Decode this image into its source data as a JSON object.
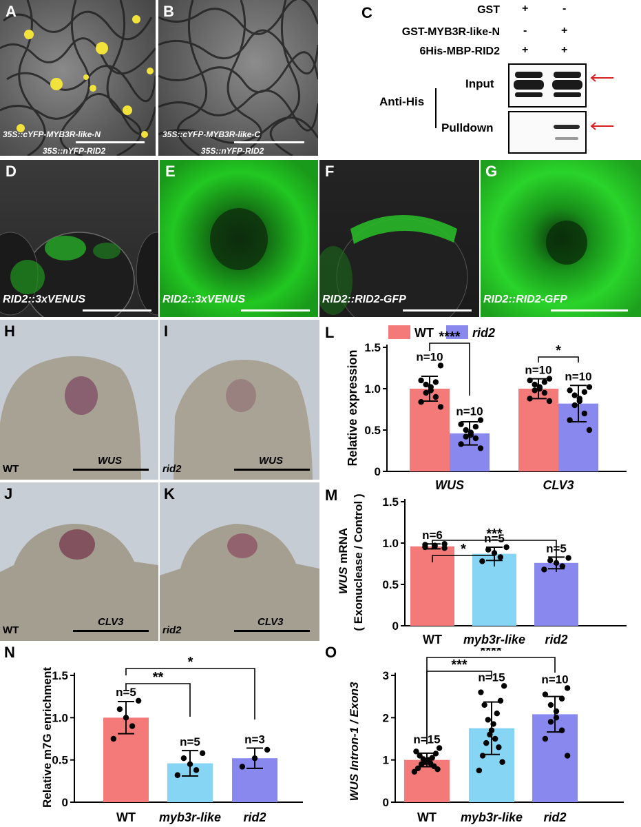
{
  "panels": {
    "A": {
      "label": "A",
      "caption1": "35S::cYFP-MYB3R-like-N",
      "caption2": "35S::nYFP-RID2"
    },
    "B": {
      "label": "B",
      "caption1": "35S::cYFP-MYB3R-like-C",
      "caption2": "35S::nYFP-RID2"
    },
    "C": {
      "label": "C",
      "rows": [
        {
          "name": "GST",
          "lane1": "+",
          "lane2": "-"
        },
        {
          "name": "GST-MYB3R-like-N",
          "lane1": "-",
          "lane2": "+"
        },
        {
          "name": "6His-MBP-RID2",
          "lane1": "+",
          "lane2": "+"
        }
      ],
      "antibody": "Anti-His",
      "input_label": "Input",
      "pulldown_label": "Pulldown"
    },
    "D": {
      "label": "D",
      "caption": "RID2::3xVENUS"
    },
    "E": {
      "label": "E",
      "caption": "RID2::3xVENUS"
    },
    "F": {
      "label": "F",
      "caption": "RID2::RID2-GFP"
    },
    "G": {
      "label": "G",
      "caption": "RID2::RID2-GFP"
    },
    "H": {
      "label": "H",
      "genotype": "WT",
      "gene": "WUS"
    },
    "I": {
      "label": "I",
      "genotype": "rid2",
      "gene": "WUS"
    },
    "J": {
      "label": "J",
      "genotype": "WT",
      "gene": "CLV3"
    },
    "K": {
      "label": "K",
      "genotype": "rid2",
      "gene": "CLV3"
    },
    "L": {
      "label": "L"
    },
    "M": {
      "label": "M"
    },
    "N": {
      "label": "N"
    },
    "O": {
      "label": "O"
    }
  },
  "colors": {
    "wt": "#f47a7a",
    "myb3r": "#86d5f5",
    "rid2": "#8888ee",
    "arrow": "#d62020"
  },
  "chart_data": [
    {
      "panel": "L",
      "type": "bar",
      "legend": [
        "WT",
        "rid2"
      ],
      "legend_placement": "top",
      "categories": [
        "WUS",
        "CLV3"
      ],
      "series": [
        {
          "name": "WT",
          "values": [
            1.0,
            1.0
          ],
          "errors": [
            0.15,
            0.12
          ],
          "n": [
            "n=10",
            "n=10"
          ],
          "points": [
            [
              1.28,
              1.1,
              1.08,
              1.05,
              1.02,
              0.98,
              0.95,
              0.9,
              0.84,
              0.78
            ],
            [
              1.12,
              1.1,
              1.08,
              1.05,
              1.02,
              1.0,
              0.98,
              0.95,
              0.88,
              0.85
            ]
          ]
        },
        {
          "name": "rid2",
          "values": [
            0.46,
            0.82
          ],
          "errors": [
            0.14,
            0.22
          ],
          "n": [
            "n=10",
            "n=10"
          ],
          "points": [
            [
              0.62,
              0.57,
              0.54,
              0.5,
              0.47,
              0.44,
              0.42,
              0.4,
              0.33,
              0.28
            ],
            [
              1.02,
              0.98,
              0.96,
              0.92,
              0.88,
              0.85,
              0.8,
              0.7,
              0.62,
              0.5
            ]
          ]
        }
      ],
      "ylabel": "Relative expression",
      "ylim": [
        0,
        1.5
      ],
      "yticks": [
        "0",
        "0.5",
        "1.0",
        "1.5"
      ],
      "significance": [
        {
          "group": "WUS",
          "label": "****"
        },
        {
          "group": "CLV3",
          "label": "*"
        }
      ]
    },
    {
      "panel": "M",
      "type": "bar",
      "categories": [
        "WT",
        "myb3r-like",
        "rid2"
      ],
      "values": [
        0.96,
        0.87,
        0.76
      ],
      "errors": [
        0.03,
        0.08,
        0.07
      ],
      "n": [
        "n=6",
        "n=5",
        "n=5"
      ],
      "points": [
        [
          0.99,
          0.98,
          0.97,
          0.96,
          0.95,
          0.94
        ],
        [
          0.95,
          0.92,
          0.88,
          0.83,
          0.78
        ],
        [
          0.82,
          0.79,
          0.76,
          0.72,
          0.68
        ]
      ],
      "ylabel_gene": "WUS",
      "ylabel_rest": " mRNA",
      "ylabel2": "( Exonuclease / Control )",
      "ylim": [
        0,
        1.5
      ],
      "yticks": [
        "0",
        "0.5",
        "1.0",
        "1.5"
      ],
      "significance": [
        {
          "from": "WT",
          "to": "myb3r-like",
          "label": "*"
        },
        {
          "from": "WT",
          "to": "rid2",
          "label": "***"
        }
      ]
    },
    {
      "panel": "N",
      "type": "bar",
      "categories": [
        "WT",
        "myb3r-like",
        "rid2"
      ],
      "values": [
        1.0,
        0.46,
        0.52
      ],
      "errors": [
        0.19,
        0.15,
        0.12
      ],
      "n": [
        "n=5",
        "n=5",
        "n=3"
      ],
      "points": [
        [
          1.2,
          1.1,
          1.0,
          0.9,
          0.75
        ],
        [
          0.58,
          0.52,
          0.45,
          0.38,
          0.32
        ],
        [
          0.62,
          0.52,
          0.42
        ]
      ],
      "ylabel": "Relative m7G enrichment",
      "ylim": [
        0,
        1.5
      ],
      "yticks": [
        "0",
        "0.5",
        "1.0",
        "1.5"
      ],
      "significance": [
        {
          "from": "WT",
          "to": "myb3r-like",
          "label": "**"
        },
        {
          "from": "WT",
          "to": "rid2",
          "label": "*"
        }
      ]
    },
    {
      "panel": "O",
      "type": "bar",
      "categories": [
        "WT",
        "myb3r-like",
        "rid2"
      ],
      "values": [
        1.0,
        1.75,
        2.08
      ],
      "errors": [
        0.16,
        0.62,
        0.42
      ],
      "n": [
        "n=15",
        "n=15",
        "n=10"
      ],
      "points": [
        [
          1.28,
          1.2,
          1.15,
          1.1,
          1.05,
          1.02,
          1.0,
          0.98,
          0.95,
          0.92,
          0.9,
          0.85,
          0.8,
          0.78,
          0.72
        ],
        [
          2.75,
          2.6,
          2.4,
          2.3,
          2.1,
          1.95,
          1.85,
          1.7,
          1.6,
          1.5,
          1.4,
          1.3,
          1.1,
          0.95,
          0.75
        ],
        [
          2.7,
          2.55,
          2.45,
          2.3,
          2.15,
          2.0,
          1.9,
          1.7,
          1.5,
          1.1
        ]
      ],
      "ylabel_gene": "WUS Intron-1 / Exon3",
      "ylim": [
        0,
        3
      ],
      "yticks": [
        "0",
        "1",
        "2",
        "3"
      ],
      "significance": [
        {
          "from": "WT",
          "to": "myb3r-like",
          "label": "***"
        },
        {
          "from": "WT",
          "to": "rid2",
          "label": "****"
        }
      ]
    }
  ]
}
